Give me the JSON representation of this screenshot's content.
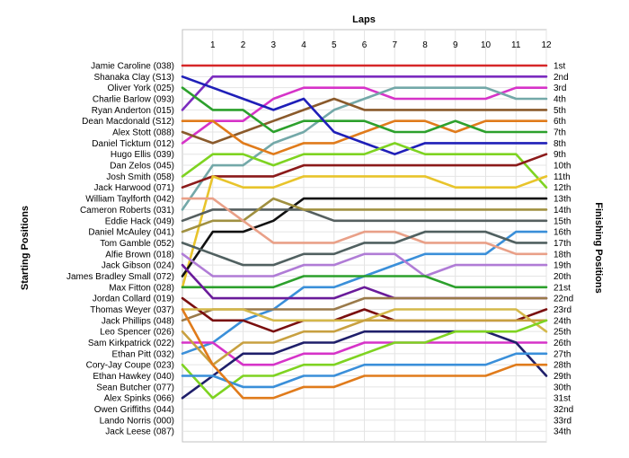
{
  "chart_data": {
    "type": "line",
    "title": "",
    "xlabel": "Laps",
    "ylabel_left": "Starting Positions",
    "ylabel_right": "Finishing Positions",
    "x": [
      0,
      1,
      2,
      3,
      4,
      5,
      6,
      7,
      8,
      9,
      10,
      11,
      12
    ],
    "x_tick_labels": [
      "1",
      "2",
      "3",
      "4",
      "5",
      "6",
      "7",
      "8",
      "9",
      "10",
      "11",
      "12"
    ],
    "ylim": [
      1,
      34
    ],
    "grid": true,
    "legend": "none",
    "start_labels": [
      "Jamie Caroline (038)",
      "Shanaka Clay (S13)",
      "Oliver York (025)",
      "Charlie Barlow (093)",
      "Ryan Anderton (015)",
      "Dean Macdonald (S12)",
      "Alex Stott (088)",
      "Daniel Ticktum (012)",
      "Hugo Ellis (039)",
      "Dan Zelos (045)",
      "Josh Smith (058)",
      "Jack Harwood (071)",
      "William Taylforth (042)",
      "Cameron Roberts (031)",
      "Eddie Hack (049)",
      "Daniel McAuley (041)",
      "Tom Gamble (052)",
      "Alfie Brown (018)",
      "Jack Gibson (024)",
      "James Bradley Small (072)",
      "Max Fitton (028)",
      "Jordan Collard (019)",
      "Thomas Weyer (037)",
      "Jack Phillips (048)",
      "Leo Spencer (026)",
      "Sam Kirkpatrick (022)",
      "Ethan Pitt (032)",
      "Cory-Jay Coupe (023)",
      "Ethan Hawkey (040)",
      "Sean Butcher (077)",
      "Alex Spinks (066)",
      "Owen Griffiths (044)",
      "Lando Norris (000)",
      "Jack Leese (087)"
    ],
    "finish_labels": [
      "1st",
      "2nd",
      "3rd",
      "4th",
      "5th",
      "6th",
      "7th",
      "8th",
      "9th",
      "10th",
      "11th",
      "12th",
      "13th",
      "14th",
      "15th",
      "16th",
      "17th",
      "18th",
      "19th",
      "20th",
      "21st",
      "22nd",
      "23rd",
      "24th",
      "25th",
      "26th",
      "27th",
      "28th",
      "29th",
      "30th",
      "31st",
      "32nd",
      "33rd",
      "34th"
    ],
    "series": [
      {
        "color": "#d62728",
        "values": [
          1,
          1,
          1,
          1,
          1,
          1,
          1,
          1,
          1,
          1,
          1,
          1,
          1
        ]
      },
      {
        "color": "#7b2cbf",
        "values": [
          5,
          2,
          2,
          2,
          2,
          2,
          2,
          2,
          2,
          2,
          2,
          2,
          2
        ]
      },
      {
        "color": "#d633c8",
        "values": [
          8,
          6,
          6,
          4,
          3,
          3,
          3,
          4,
          4,
          4,
          4,
          3,
          3
        ]
      },
      {
        "color": "#73a8a8",
        "values": [
          14,
          10,
          10,
          8,
          7,
          5,
          4,
          3,
          3,
          3,
          3,
          4,
          4
        ]
      },
      {
        "color": "#8a5a2b",
        "values": [
          7,
          8,
          7,
          6,
          5,
          4,
          5,
          5,
          5,
          5,
          5,
          5,
          5
        ]
      },
      {
        "color": "#e07b1b",
        "values": [
          6,
          6,
          8,
          9,
          8,
          8,
          7,
          6,
          6,
          7,
          6,
          6,
          6
        ]
      },
      {
        "color": "#2ca02c",
        "values": [
          3,
          5,
          5,
          7,
          6,
          6,
          6,
          7,
          7,
          6,
          7,
          7,
          7
        ]
      },
      {
        "color": "#1f1fb8",
        "values": [
          2,
          3,
          4,
          5,
          4,
          7,
          8,
          9,
          8,
          8,
          8,
          8,
          8
        ]
      },
      {
        "color": "#7ed321",
        "values": [
          11,
          9,
          9,
          10,
          9,
          9,
          9,
          8,
          9,
          9,
          9,
          9,
          12
        ]
      },
      {
        "color": "#8b1a1a",
        "values": [
          12,
          11,
          11,
          11,
          10,
          10,
          10,
          10,
          10,
          10,
          10,
          10,
          9
        ]
      },
      {
        "color": "#e8c42b",
        "values": [
          21,
          11,
          12,
          12,
          11,
          11,
          11,
          11,
          11,
          12,
          12,
          12,
          11
        ]
      },
      {
        "color": "#111111",
        "values": [
          20,
          16,
          16,
          15,
          13,
          13,
          13,
          13,
          13,
          13,
          13,
          13,
          13
        ]
      },
      {
        "color": "#555f5f",
        "values": [
          15,
          14,
          14,
          14,
          14,
          15,
          15,
          15,
          15,
          15,
          15,
          15,
          15
        ]
      },
      {
        "color": "#3a8fd9",
        "values": [
          27,
          26,
          24,
          23,
          21,
          21,
          20,
          19,
          18,
          18,
          18,
          16,
          16
        ]
      },
      {
        "color": "#a09040",
        "values": [
          16,
          15,
          15,
          13,
          14,
          14,
          14,
          14,
          14,
          14,
          14,
          14,
          14
        ]
      },
      {
        "color": "#e9a088",
        "values": [
          13,
          13,
          15,
          17,
          17,
          17,
          16,
          16,
          17,
          17,
          17,
          18,
          18
        ]
      },
      {
        "color": "#506060",
        "values": [
          17,
          18,
          19,
          19,
          18,
          18,
          17,
          17,
          16,
          16,
          16,
          17,
          17
        ]
      },
      {
        "color": "#b07cd6",
        "values": [
          18,
          20,
          20,
          20,
          19,
          19,
          18,
          18,
          20,
          19,
          19,
          19,
          19
        ]
      },
      {
        "color": "#2ca02c",
        "values": [
          21,
          21,
          21,
          21,
          20,
          20,
          20,
          20,
          20,
          21,
          21,
          21,
          21
        ]
      },
      {
        "color": "#6a1b9a",
        "values": [
          19,
          22,
          22,
          22,
          22,
          22,
          21,
          22,
          22,
          22,
          22,
          22,
          22
        ]
      },
      {
        "color": "#9a7a4a",
        "values": [
          24,
          23,
          23,
          23,
          23,
          23,
          22,
          22,
          22,
          22,
          22,
          22,
          22
        ]
      },
      {
        "color": "#7a0f0f",
        "values": [
          22,
          24,
          24,
          25,
          24,
          24,
          23,
          24,
          24,
          24,
          24,
          24,
          23
        ]
      },
      {
        "color": "#d4b84a",
        "values": [
          23,
          23,
          23,
          24,
          24,
          24,
          24,
          23,
          23,
          23,
          23,
          23,
          25
        ]
      },
      {
        "color": "#d633c8",
        "values": [
          26,
          26,
          28,
          28,
          27,
          27,
          26,
          26,
          26,
          26,
          26,
          26,
          26
        ]
      },
      {
        "color": "#1f1f6a",
        "values": [
          31,
          29,
          27,
          27,
          26,
          26,
          25,
          25,
          25,
          25,
          25,
          26,
          29
        ]
      },
      {
        "color": "#c8a040",
        "values": [
          25,
          28,
          26,
          26,
          25,
          25,
          24,
          24,
          24,
          24,
          24,
          24,
          24
        ]
      },
      {
        "color": "#7ed321",
        "values": [
          28,
          31,
          29,
          29,
          28,
          28,
          27,
          26,
          26,
          25,
          25,
          25,
          24
        ]
      },
      {
        "color": "#3a8fd9",
        "values": [
          29,
          29,
          30,
          30,
          29,
          29,
          28,
          28,
          28,
          28,
          28,
          27,
          27
        ]
      },
      {
        "color": "#e07b1b",
        "values": [
          23,
          28,
          31,
          31,
          30,
          30,
          29,
          29,
          29,
          29,
          29,
          28,
          28
        ]
      }
    ]
  }
}
